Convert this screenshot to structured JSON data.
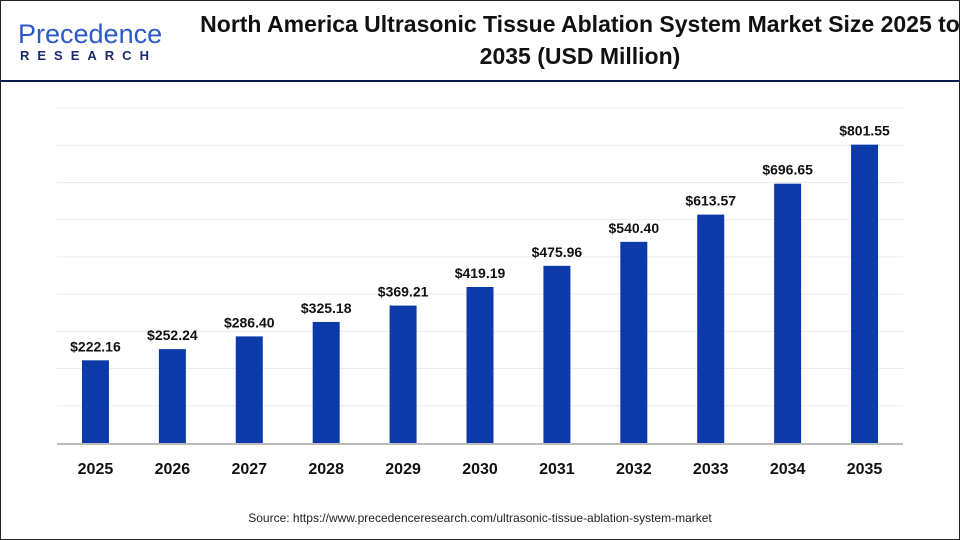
{
  "brand": {
    "line1": "Precedence",
    "line2": "RESEARCH"
  },
  "chart_data": {
    "type": "bar",
    "title": "North America Ultrasonic Tissue Ablation System Market Size 2025 to 2035 (USD Million)",
    "categories": [
      "2025",
      "2026",
      "2027",
      "2028",
      "2029",
      "2030",
      "2031",
      "2032",
      "2033",
      "2034",
      "2035"
    ],
    "values": [
      222.16,
      252.24,
      286.4,
      325.18,
      369.21,
      419.19,
      475.96,
      540.4,
      613.57,
      696.65,
      801.55
    ],
    "data_labels": [
      "$222.16",
      "$252.24",
      "$286.40",
      "$325.18",
      "$369.21",
      "$419.19",
      "$475.96",
      "$540.40",
      "$613.57",
      "$696.65",
      "$801.55"
    ],
    "ylim": [
      0,
      900
    ],
    "grid": true,
    "bar_color": "#0d3aa9",
    "xlabel": "",
    "ylabel": ""
  },
  "source": "Source: https://www.precedenceresearch.com/ultrasonic-tissue-ablation-system-market"
}
